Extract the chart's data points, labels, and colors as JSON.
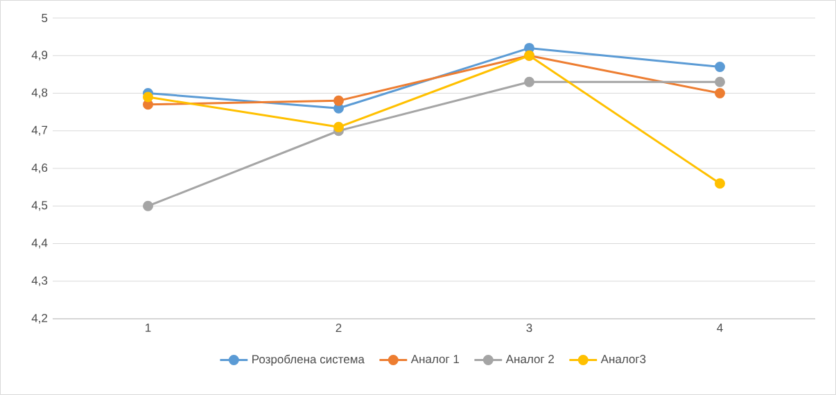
{
  "chart_data": {
    "type": "line",
    "categories": [
      "1",
      "2",
      "3",
      "4"
    ],
    "series": [
      {
        "name": "Розроблена система",
        "color": "#5b9bd5",
        "values": [
          4.8,
          4.76,
          4.92,
          4.87
        ]
      },
      {
        "name": "Аналог 1",
        "color": "#ed7d31",
        "values": [
          4.77,
          4.78,
          4.9,
          4.8
        ]
      },
      {
        "name": "Аналог 2",
        "color": "#a5a5a5",
        "values": [
          4.5,
          4.7,
          4.83,
          4.83
        ]
      },
      {
        "name": "Аналог3",
        "color": "#ffc000",
        "values": [
          4.79,
          4.71,
          4.9,
          4.56
        ]
      }
    ],
    "ylim": [
      4.2,
      5
    ],
    "yticks": [
      {
        "value": 4.2,
        "label": "4,2"
      },
      {
        "value": 4.3,
        "label": "4,3"
      },
      {
        "value": 4.4,
        "label": "4,4"
      },
      {
        "value": 4.5,
        "label": "4,5"
      },
      {
        "value": 4.6,
        "label": "4,6"
      },
      {
        "value": 4.7,
        "label": "4,7"
      },
      {
        "value": 4.8,
        "label": "4,8"
      },
      {
        "value": 4.9,
        "label": "4,9"
      },
      {
        "value": 5,
        "label": "5"
      }
    ],
    "grid": "y",
    "legend": "bottom",
    "marker": "circle",
    "line_style": "solid"
  }
}
